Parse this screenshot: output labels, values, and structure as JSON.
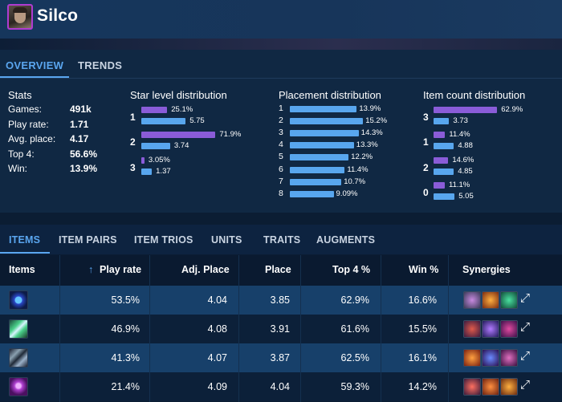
{
  "header": {
    "champion": "Silco"
  },
  "tabs": [
    "OVERVIEW",
    "TRENDS"
  ],
  "stats": {
    "title": "Stats",
    "rows": [
      {
        "label": "Games:",
        "value": "491k"
      },
      {
        "label": "Play rate:",
        "value": "1.71"
      },
      {
        "label": "Avg. place:",
        "value": "4.17"
      },
      {
        "label": "Top 4:",
        "value": "56.6%"
      },
      {
        "label": "Win:",
        "value": "13.9%"
      }
    ]
  },
  "star_level": {
    "title": "Star level distribution",
    "rows": [
      {
        "label": "1",
        "pct": "25.1%",
        "pct_value": 25.1,
        "avg": "5.75",
        "avg_value": 5.75
      },
      {
        "label": "2",
        "pct": "71.9%",
        "pct_value": 71.9,
        "avg": "3.74",
        "avg_value": 3.74
      },
      {
        "label": "3",
        "pct": "3.05%",
        "pct_value": 3.05,
        "avg": "1.37",
        "avg_value": 1.37
      }
    ]
  },
  "placement": {
    "title": "Placement distribution",
    "rows": [
      {
        "label": "1",
        "pct": "13.9%",
        "value": 13.9
      },
      {
        "label": "2",
        "pct": "15.2%",
        "value": 15.2
      },
      {
        "label": "3",
        "pct": "14.3%",
        "value": 14.3
      },
      {
        "label": "4",
        "pct": "13.3%",
        "value": 13.3
      },
      {
        "label": "5",
        "pct": "12.2%",
        "value": 12.2
      },
      {
        "label": "6",
        "pct": "11.4%",
        "value": 11.4
      },
      {
        "label": "7",
        "pct": "10.7%",
        "value": 10.7
      },
      {
        "label": "8",
        "pct": "9.09%",
        "value": 9.09
      }
    ]
  },
  "item_count": {
    "title": "Item count distribution",
    "rows": [
      {
        "label": "3",
        "pct": "62.9%",
        "pct_value": 62.9,
        "avg": "3.73",
        "avg_value": 3.73
      },
      {
        "label": "1",
        "pct": "11.4%",
        "pct_value": 11.4,
        "avg": "4.88",
        "avg_value": 4.88
      },
      {
        "label": "2",
        "pct": "14.6%",
        "pct_value": 14.6,
        "avg": "4.85",
        "avg_value": 4.85
      },
      {
        "label": "0",
        "pct": "11.1%",
        "pct_value": 11.1,
        "avg": "5.05",
        "avg_value": 5.05
      }
    ]
  },
  "table_tabs": [
    "ITEMS",
    "ITEM PAIRS",
    "ITEM TRIOS",
    "UNITS",
    "TRAITS",
    "AUGMENTS"
  ],
  "table": {
    "headers": {
      "items": "Items",
      "sort_icon": "↑",
      "play_rate": "Play rate",
      "adj_place": "Adj. Place",
      "place": "Place",
      "top4": "Top 4 %",
      "win": "Win %",
      "synergies": "Synergies"
    },
    "rows": [
      {
        "icon": "orb-item-icon",
        "play_rate": "53.5%",
        "adj_place": "4.04",
        "place": "3.85",
        "top4": "62.9%",
        "win": "16.6%"
      },
      {
        "icon": "blade-item-icon",
        "play_rate": "46.9%",
        "adj_place": "4.08",
        "place": "3.91",
        "top4": "61.6%",
        "win": "15.5%"
      },
      {
        "icon": "claw-item-icon",
        "play_rate": "41.3%",
        "adj_place": "4.07",
        "place": "3.87",
        "top4": "62.5%",
        "win": "16.1%"
      },
      {
        "icon": "gem-item-icon",
        "play_rate": "21.4%",
        "adj_place": "4.09",
        "place": "4.04",
        "top4": "59.3%",
        "win": "14.2%"
      }
    ],
    "expand_icon": "⤢"
  },
  "colors": {
    "accent": "#5aa6ef",
    "bar_purple": "#8a5cd8",
    "bar_blue": "#58a6ee",
    "row_highlight": "#17406a",
    "background": "#0b1d33"
  }
}
